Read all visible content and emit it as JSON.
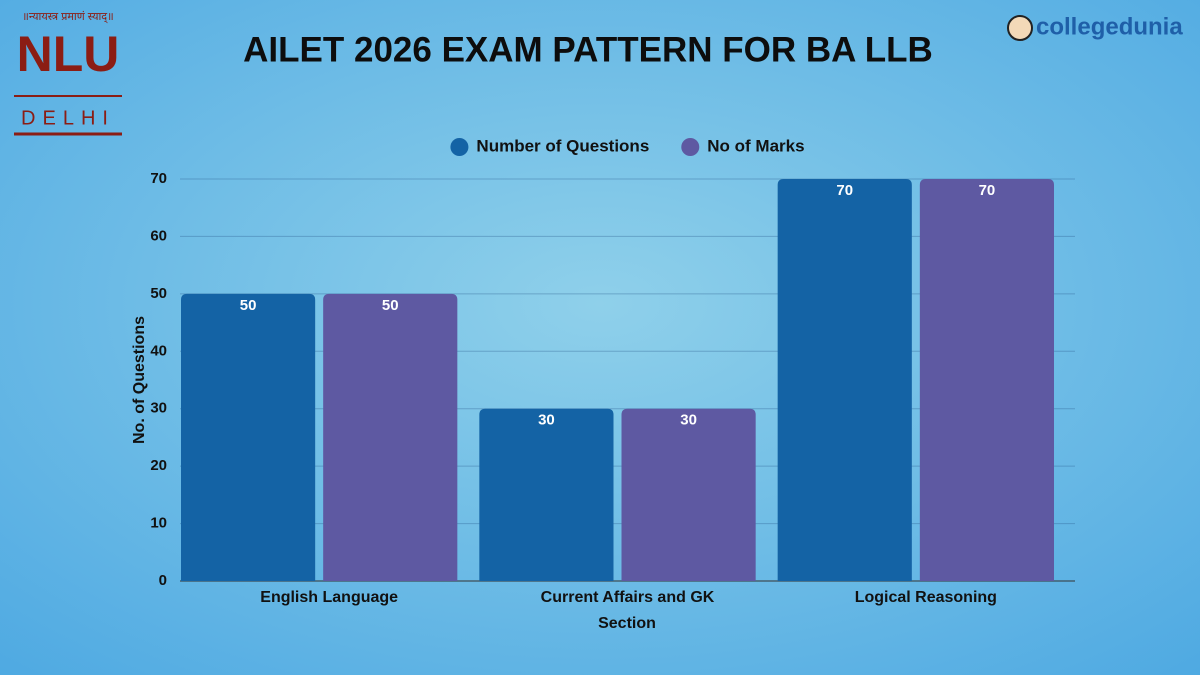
{
  "branding": {
    "motto": "॥न्यायस्त्र प्रमाणं स्याद्॥",
    "logo_name": "NLU",
    "logo_city": "DELHI",
    "brand": "collegedunia"
  },
  "chart_data": {
    "type": "bar",
    "title": "AILET 2026 EXAM PATTERN FOR BA LLB",
    "categories": [
      "English Language",
      "Current Affairs and GK",
      "Logical Reasoning"
    ],
    "series": [
      {
        "name": "Number of Questions",
        "color": "#1463a5",
        "values": [
          50,
          30,
          70
        ]
      },
      {
        "name": "No of Marks",
        "color": "#5e59a2",
        "values": [
          50,
          30,
          70
        ]
      }
    ],
    "x_label": "Section",
    "y_label": "No. of Questions",
    "ylim": [
      0,
      70
    ],
    "yticks": [
      0,
      10,
      20,
      30,
      40,
      50,
      60,
      70
    ],
    "grid": true,
    "legend": "top"
  }
}
